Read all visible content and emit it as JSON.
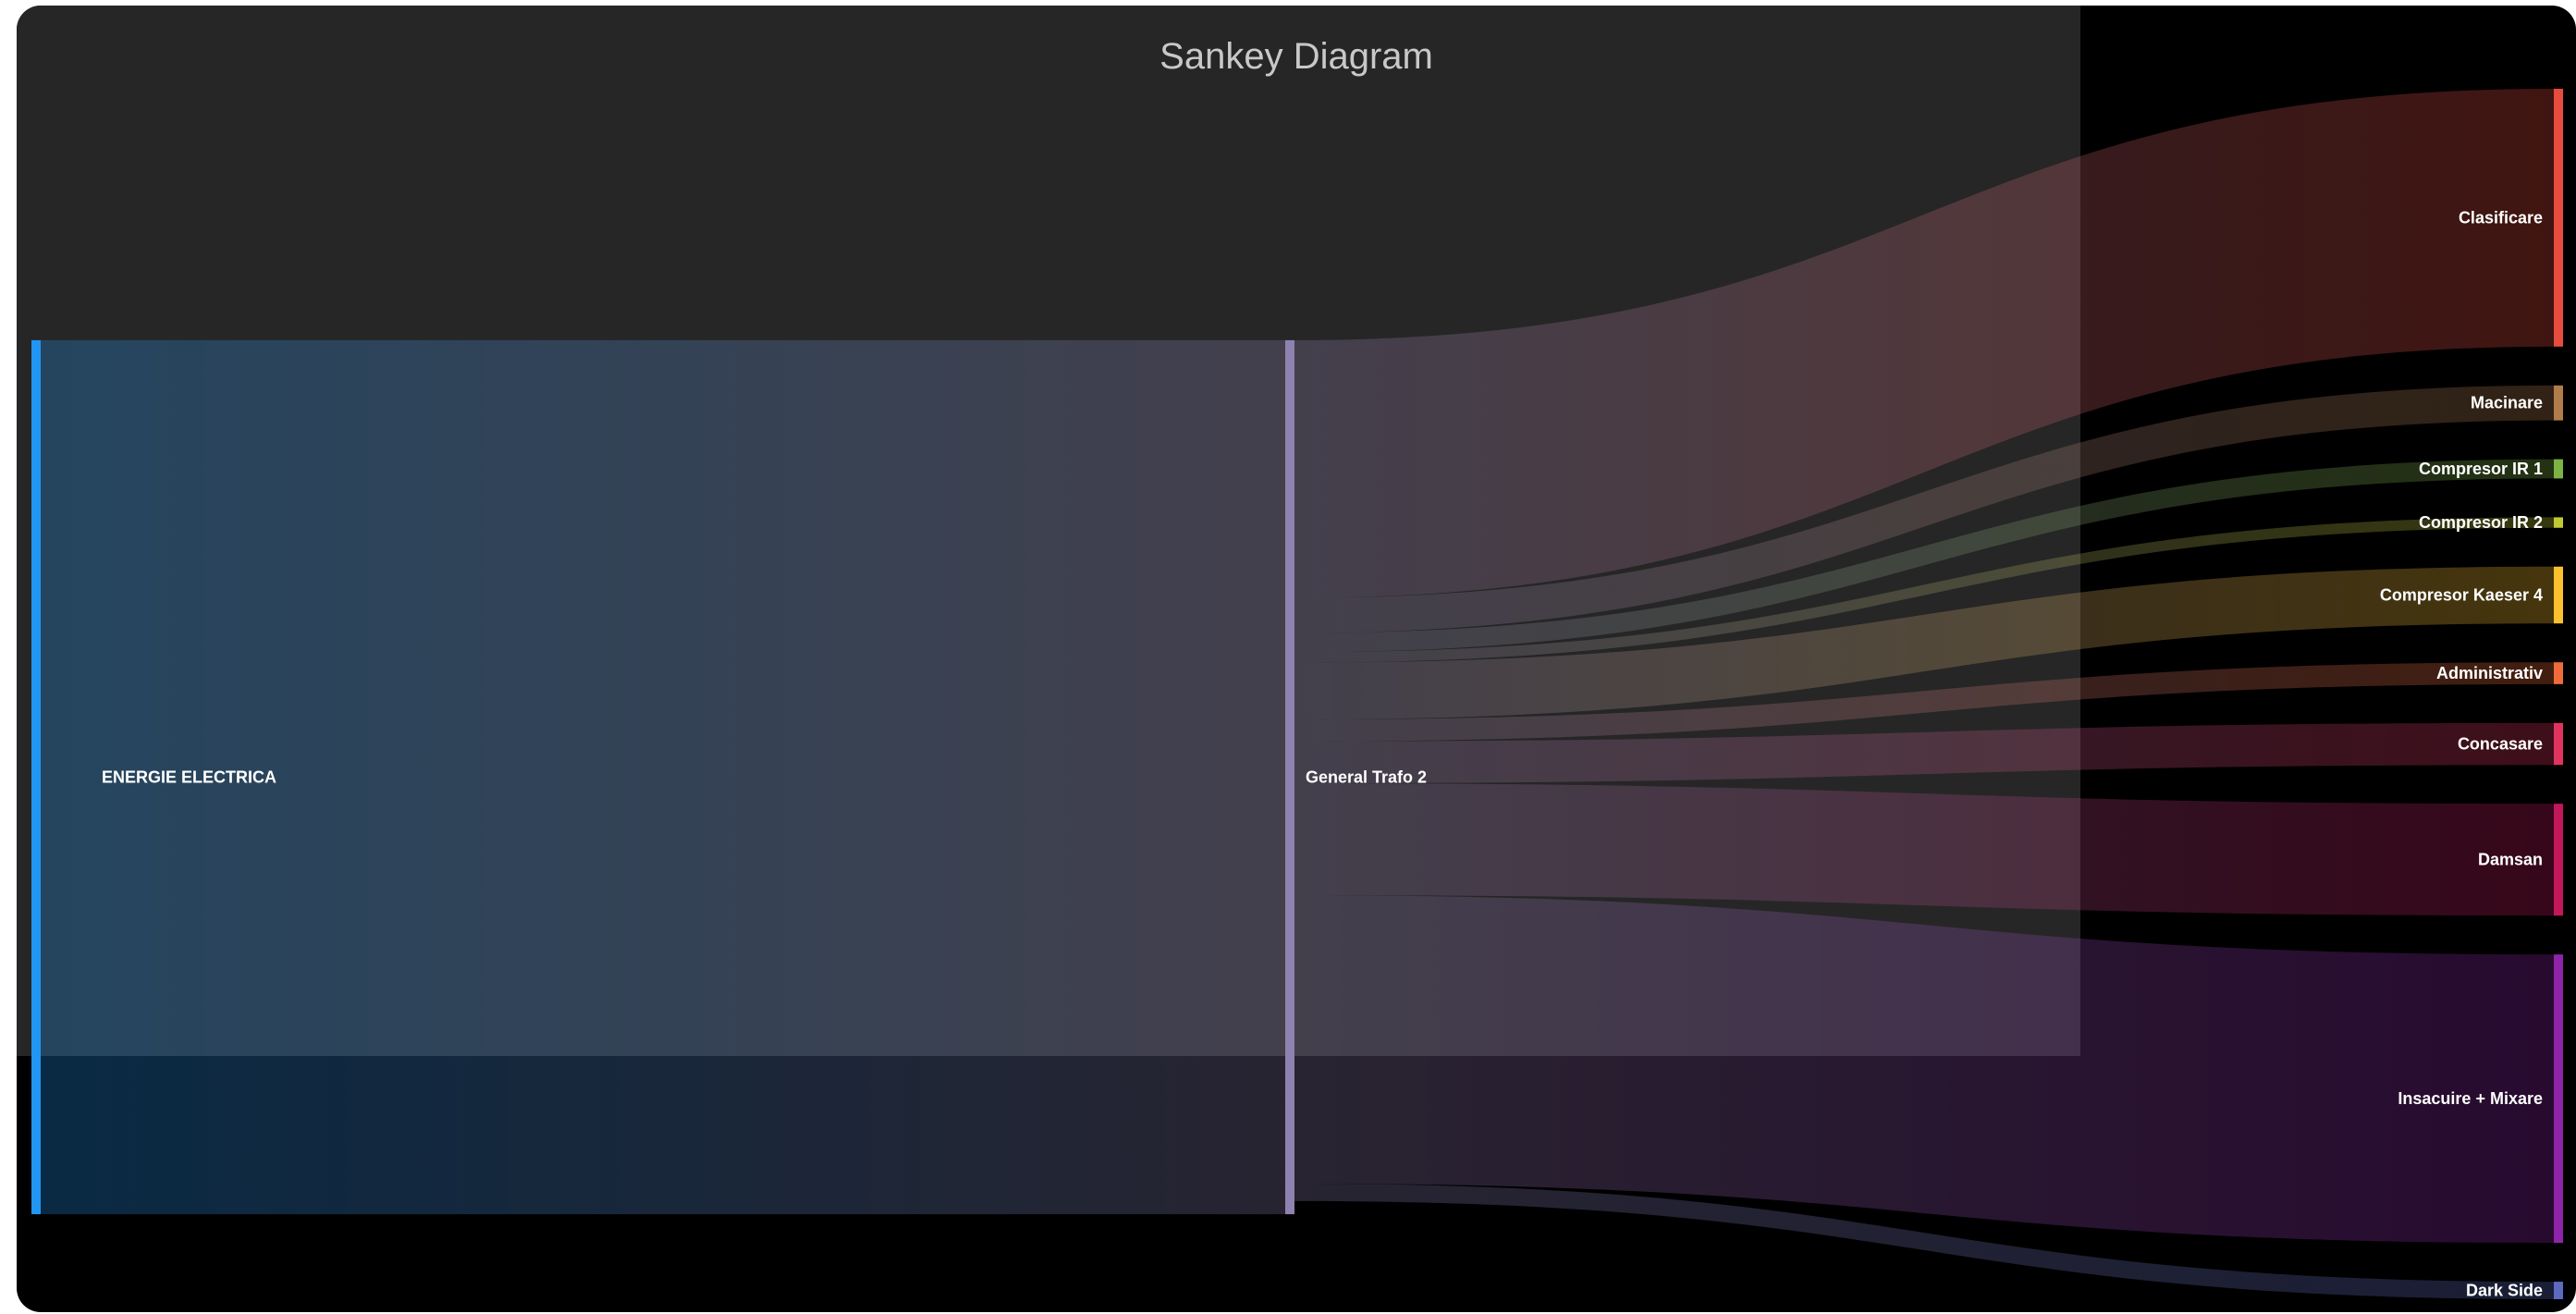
{
  "chart_data": {
    "type": "sankey",
    "title": "Sankey Diagram",
    "nodes": [
      {
        "id": "energie",
        "label": "ENERGIE ELECTRICA",
        "color": "#2196f3",
        "column": 0
      },
      {
        "id": "trafo",
        "label": "General Trafo 2",
        "color": "#8e82b0",
        "column": 1
      },
      {
        "id": "clasificare",
        "label": "Clasificare",
        "color": "#e74c3c",
        "column": 2
      },
      {
        "id": "macinare",
        "label": "Macinare",
        "color": "#b07c4a",
        "column": 2
      },
      {
        "id": "compresor_ir1",
        "label": "Compresor IR 1",
        "color": "#7cb342",
        "column": 2
      },
      {
        "id": "compresor_ir2",
        "label": "Compresor IR 2",
        "color": "#c0ca33",
        "column": 2
      },
      {
        "id": "compresor_kaeser4",
        "label": "Compresor Kaeser 4",
        "color": "#fbc02d",
        "column": 2
      },
      {
        "id": "administrativ",
        "label": "Administrativ",
        "color": "#ef6c3a",
        "column": 2
      },
      {
        "id": "concasare",
        "label": "Concasare",
        "color": "#e0345e",
        "column": 2
      },
      {
        "id": "damsan",
        "label": "Damsan",
        "color": "#c2185b",
        "column": 2
      },
      {
        "id": "insacuire_mixare",
        "label": "Insacuire + Mixare",
        "color": "#8e24aa",
        "column": 2
      },
      {
        "id": "dark_side",
        "label": "Dark Side",
        "color": "#5c6bc0",
        "column": 2
      }
    ],
    "links": [
      {
        "source": "energie",
        "target": "trafo",
        "value": 1000
      },
      {
        "source": "trafo",
        "target": "clasificare",
        "value": 295
      },
      {
        "source": "trafo",
        "target": "macinare",
        "value": 40
      },
      {
        "source": "trafo",
        "target": "compresor_ir1",
        "value": 22
      },
      {
        "source": "trafo",
        "target": "compresor_ir2",
        "value": 12
      },
      {
        "source": "trafo",
        "target": "compresor_kaeser4",
        "value": 65
      },
      {
        "source": "trafo",
        "target": "administrativ",
        "value": 25
      },
      {
        "source": "trafo",
        "target": "concasare",
        "value": 48
      },
      {
        "source": "trafo",
        "target": "damsan",
        "value": 128
      },
      {
        "source": "trafo",
        "target": "insacuire_mixare",
        "value": 330
      },
      {
        "source": "trafo",
        "target": "dark_side",
        "value": 20
      }
    ]
  }
}
